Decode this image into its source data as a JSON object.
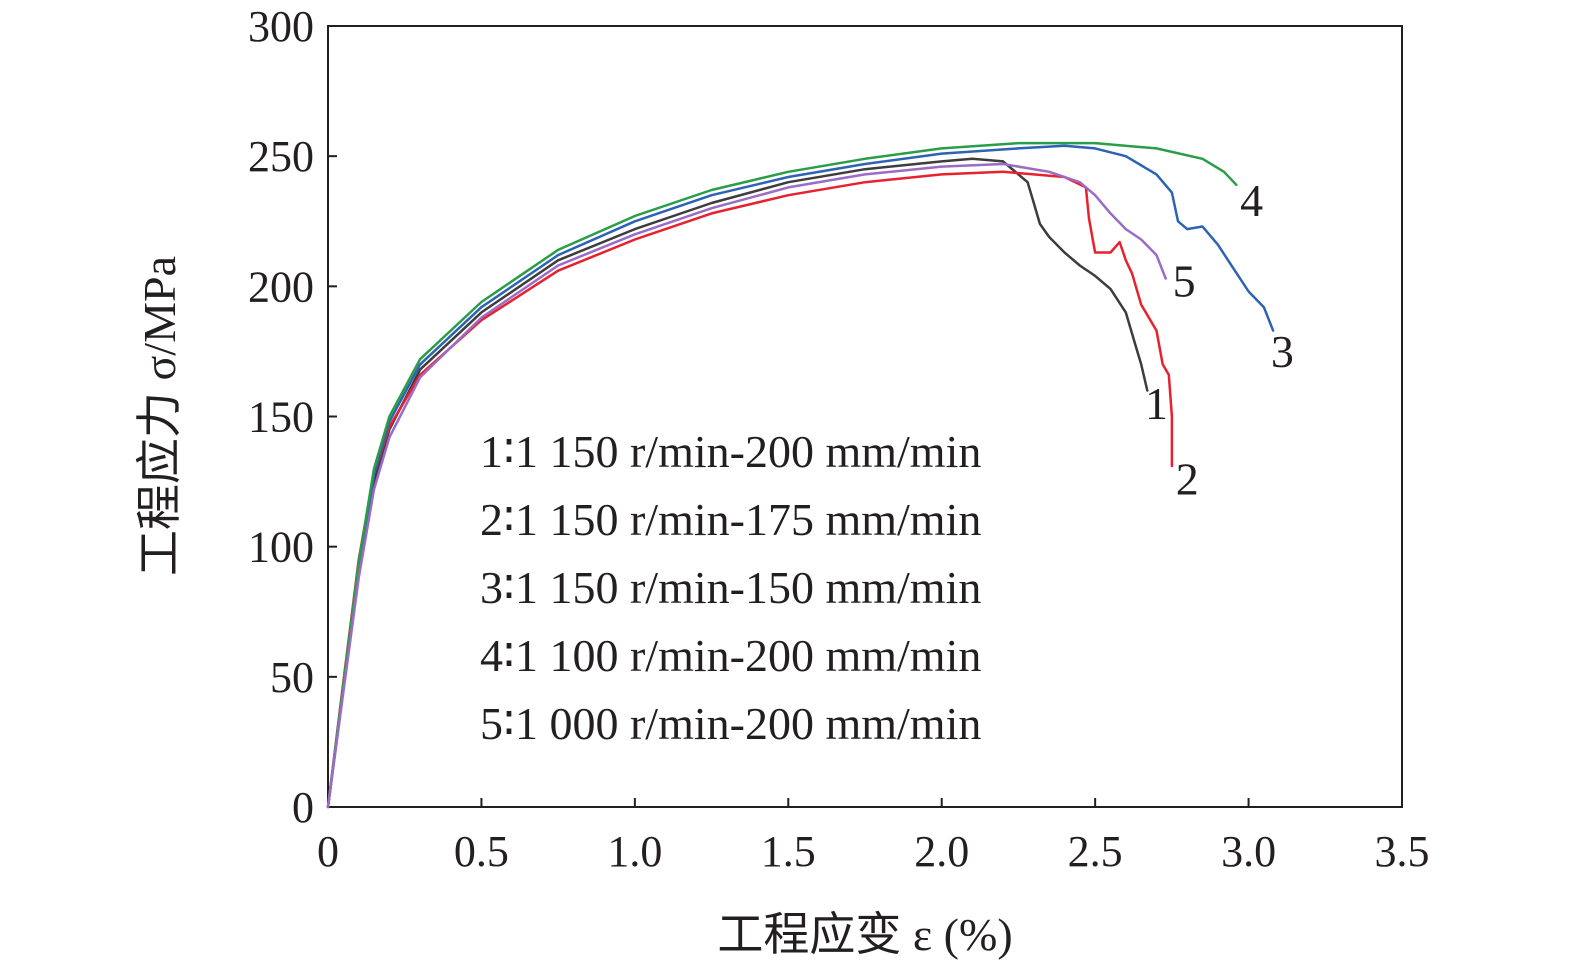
{
  "chart_data": {
    "type": "line",
    "title": "",
    "xlabel": "工程应变 ε (%)",
    "ylabel": "工程应力 σ/MPa",
    "xlim": [
      0,
      3.5
    ],
    "ylim": [
      0,
      300
    ],
    "xticks": [
      "0",
      "0.5",
      "1.0",
      "1.5",
      "2.0",
      "2.5",
      "3.0",
      "3.5"
    ],
    "yticks": [
      "0",
      "50",
      "100",
      "150",
      "200",
      "250",
      "300"
    ],
    "grid": false,
    "legend_position": "center",
    "legend_entries": [
      "1∶1 150 r/min-200 mm/min",
      "2∶1 150 r/min-175 mm/min",
      "3∶1 150 r/min-150 mm/min",
      "4∶1 100 r/min-200 mm/min",
      "5∶1 000 r/min-200 mm/min"
    ],
    "series": [
      {
        "name": "1",
        "color": "#3d3d3d",
        "x": [
          0,
          0.05,
          0.1,
          0.15,
          0.2,
          0.3,
          0.5,
          0.75,
          1.0,
          1.25,
          1.5,
          1.75,
          2.0,
          2.1,
          2.2,
          2.28,
          2.3,
          2.32,
          2.35,
          2.4,
          2.45,
          2.5,
          2.55,
          2.6,
          2.63,
          2.65,
          2.67
        ],
        "y": [
          0,
          45,
          90,
          125,
          145,
          168,
          190,
          210,
          222,
          232,
          240,
          245,
          248,
          249,
          248,
          240,
          232,
          224,
          219,
          213,
          208,
          204,
          199,
          190,
          178,
          170,
          160
        ]
      },
      {
        "name": "2",
        "color": "#e8212e",
        "x": [
          0,
          0.05,
          0.1,
          0.15,
          0.2,
          0.3,
          0.5,
          0.75,
          1.0,
          1.25,
          1.5,
          1.75,
          2.0,
          2.2,
          2.4,
          2.47,
          2.48,
          2.5,
          2.55,
          2.58,
          2.6,
          2.62,
          2.65,
          2.7,
          2.72,
          2.74,
          2.75,
          2.75
        ],
        "y": [
          0,
          48,
          95,
          128,
          146,
          166,
          187,
          206,
          218,
          228,
          235,
          240,
          243,
          244,
          242,
          238,
          226,
          213,
          213,
          217,
          210,
          205,
          193,
          183,
          170,
          166,
          150,
          131
        ]
      },
      {
        "name": "3",
        "color": "#2e62b5",
        "x": [
          0,
          0.05,
          0.1,
          0.15,
          0.2,
          0.3,
          0.5,
          0.75,
          1.0,
          1.25,
          1.5,
          1.75,
          2.0,
          2.25,
          2.4,
          2.5,
          2.6,
          2.7,
          2.75,
          2.77,
          2.8,
          2.85,
          2.9,
          2.95,
          3.0,
          3.05,
          3.08
        ],
        "y": [
          0,
          46,
          93,
          128,
          148,
          170,
          192,
          212,
          225,
          235,
          242,
          247,
          251,
          253,
          254,
          253,
          250,
          243,
          236,
          225,
          222,
          223,
          216,
          207,
          198,
          192,
          183
        ]
      },
      {
        "name": "4",
        "color": "#2a9d48",
        "x": [
          0,
          0.05,
          0.1,
          0.15,
          0.2,
          0.3,
          0.5,
          0.75,
          1.0,
          1.25,
          1.5,
          1.75,
          2.0,
          2.25,
          2.5,
          2.7,
          2.85,
          2.92,
          2.96
        ],
        "y": [
          0,
          47,
          94,
          130,
          150,
          172,
          194,
          214,
          227,
          237,
          244,
          249,
          253,
          255,
          255,
          253,
          249,
          244,
          239
        ]
      },
      {
        "name": "5",
        "color": "#9b6bc7",
        "x": [
          0,
          0.05,
          0.1,
          0.15,
          0.2,
          0.3,
          0.5,
          0.75,
          1.0,
          1.25,
          1.5,
          1.75,
          2.0,
          2.2,
          2.35,
          2.45,
          2.5,
          2.55,
          2.6,
          2.65,
          2.7,
          2.73
        ],
        "y": [
          0,
          44,
          88,
          122,
          142,
          165,
          188,
          208,
          220,
          230,
          238,
          243,
          246,
          247,
          244,
          240,
          235,
          228,
          222,
          218,
          212,
          203
        ]
      }
    ],
    "annotations": [
      {
        "text": "1",
        "x": 2.7,
        "y": 149
      },
      {
        "text": "2",
        "x": 2.8,
        "y": 120
      },
      {
        "text": "3",
        "x": 3.11,
        "y": 169
      },
      {
        "text": "4",
        "x": 3.01,
        "y": 227
      },
      {
        "text": "5",
        "x": 2.79,
        "y": 196
      }
    ]
  }
}
